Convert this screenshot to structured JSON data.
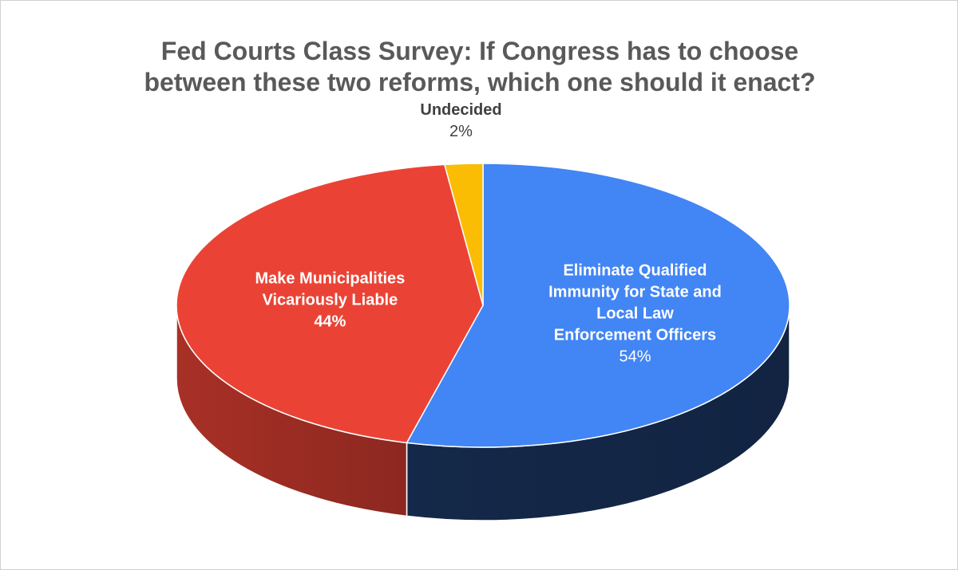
{
  "chart_data": {
    "type": "pie",
    "title": "Fed Courts Class Survey: If Congress has to choose between these two reforms, which one should it enact?",
    "categories": [
      "Eliminate Qualified Immunity for State and Local Law Enforcement Officers",
      "Make Municipalities Vicariously Liable",
      "Undecided"
    ],
    "values": [
      54,
      44,
      2
    ],
    "value_labels": [
      "54%",
      "44%",
      "2%"
    ],
    "colors": [
      "#4285f4",
      "#ea4335",
      "#fbbc04"
    ]
  }
}
